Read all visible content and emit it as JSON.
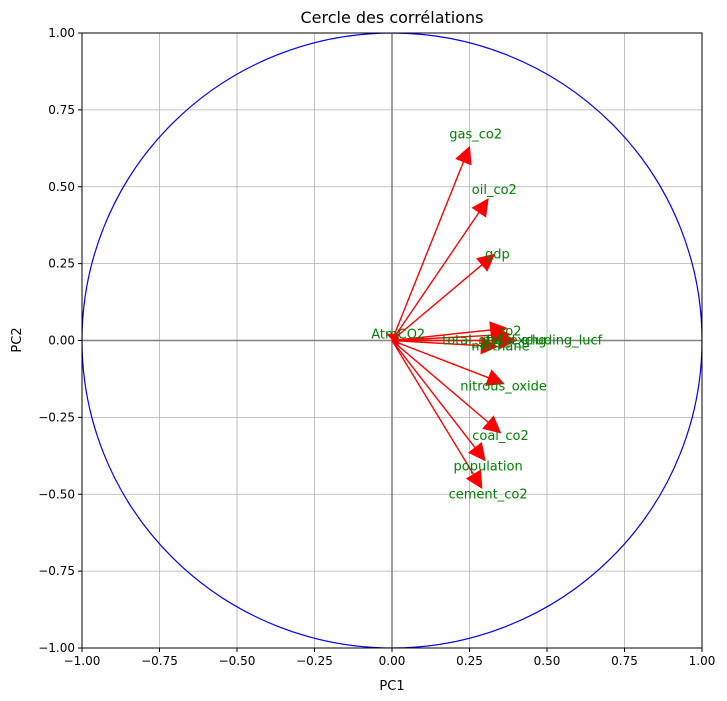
{
  "chart_data": {
    "type": "scatter",
    "title": "Cercle des corrélations",
    "xlabel": "PC1",
    "ylabel": "PC2",
    "xlim": [
      -1.0,
      1.0
    ],
    "ylim": [
      -1.0,
      1.0
    ],
    "grid": true,
    "x_ticks": [
      -1.0,
      -0.75,
      -0.5,
      -0.25,
      0.0,
      0.25,
      0.5,
      0.75,
      1.0
    ],
    "x_tick_labels": [
      "−1.00",
      "−0.75",
      "−0.50",
      "−0.25",
      "0.00",
      "0.25",
      "0.50",
      "0.75",
      "1.00"
    ],
    "y_ticks": [
      -1.0,
      -0.75,
      -0.5,
      -0.25,
      0.0,
      0.25,
      0.5,
      0.75,
      1.0
    ],
    "y_tick_labels": [
      "−1.00",
      "−0.75",
      "−0.50",
      "−0.25",
      "0.00",
      "0.25",
      "0.50",
      "0.75",
      "1.00"
    ],
    "circle_radius": 1.0,
    "colors": {
      "arrow": "#ff0000",
      "label": "#008000",
      "circle": "#0000ff",
      "grid": "#b0b0b0",
      "axis_line": "#808080"
    },
    "vectors": [
      {
        "name": "gas_co2",
        "x": 0.25,
        "y": 0.63
      },
      {
        "name": "oil_co2",
        "x": 0.31,
        "y": 0.46
      },
      {
        "name": "gdp",
        "x": 0.33,
        "y": 0.28
      },
      {
        "name": "co2",
        "x": 0.37,
        "y": 0.04
      },
      {
        "name": "total_ghg",
        "x": 0.38,
        "y": 0.02
      },
      {
        "name": "total_ghg_excluding_lucf",
        "x": 0.4,
        "y": 0.0
      },
      {
        "name": "methane",
        "x": 0.34,
        "y": -0.02
      },
      {
        "name": "nitrous_oxide",
        "x": 0.36,
        "y": -0.14
      },
      {
        "name": "coal_co2",
        "x": 0.35,
        "y": -0.3
      },
      {
        "name": "population",
        "x": 0.3,
        "y": -0.39
      },
      {
        "name": "cement_co2",
        "x": 0.29,
        "y": -0.48
      },
      {
        "name": "AtmCO2",
        "x": 0.02,
        "y": 0.02
      }
    ],
    "labels": [
      {
        "text": "gas_co2",
        "x": 0.27,
        "y": 0.67
      },
      {
        "text": "oil_co2",
        "x": 0.33,
        "y": 0.49
      },
      {
        "text": "gdp",
        "x": 0.34,
        "y": 0.28
      },
      {
        "text": "co2",
        "x": 0.38,
        "y": 0.03
      },
      {
        "text": "total_ghg",
        "x": 0.4,
        "y": 0.0
      },
      {
        "text": "total_ghg_excluding_lucf",
        "x": 0.42,
        "y": 0.0
      },
      {
        "text": "methane",
        "x": 0.35,
        "y": -0.02
      },
      {
        "text": "nitrous_oxide",
        "x": 0.36,
        "y": -0.15
      },
      {
        "text": "coal_co2",
        "x": 0.35,
        "y": -0.31
      },
      {
        "text": "population",
        "x": 0.31,
        "y": -0.41
      },
      {
        "text": "cement_co2",
        "x": 0.31,
        "y": -0.5
      },
      {
        "text": "AtmCO2",
        "x": 0.02,
        "y": 0.02
      }
    ]
  }
}
